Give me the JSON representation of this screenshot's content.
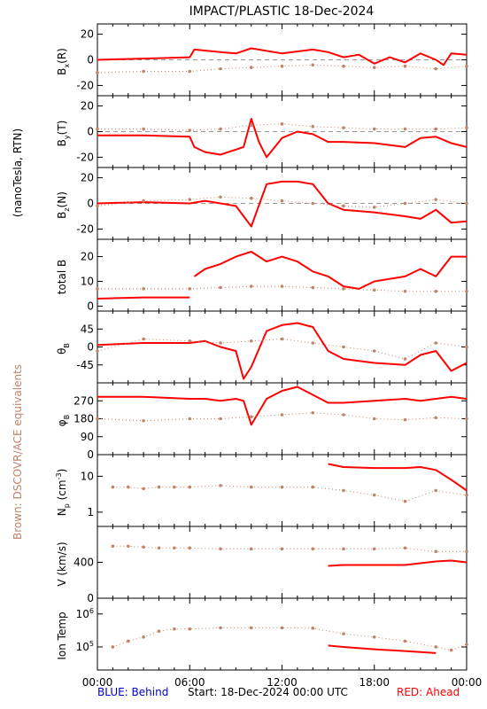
{
  "title": "IMPACT/PLASTIC   18-Dec-2024",
  "side_label_units": "(nanoTesla, RTN)",
  "side_label_brown": "Brown: DSCOVR/ACE equivalents",
  "footer": {
    "blue": "BLUE: Behind",
    "start": "Start: 18-Dec-2024 00:00 UTC",
    "red": "RED: Ahead"
  },
  "colors": {
    "red": "#ff0000",
    "brown": "#c0846a",
    "blue": "#0000cc",
    "axis": "#000000"
  },
  "x_ticks": [
    "00:00",
    "06:00",
    "12:00",
    "18:00",
    "00:00"
  ],
  "chart_data": [
    {
      "type": "line",
      "ylabel": "B_x(R)",
      "ylim": [
        -28,
        28
      ],
      "yticks": [
        {
          "v": 20,
          "l": "20"
        },
        {
          "v": 0,
          "l": "0"
        },
        {
          "v": -20,
          "l": "-20"
        }
      ],
      "zero_line": true,
      "series": [
        {
          "color": "red",
          "style": "line",
          "x": [
            0,
            3,
            6,
            6.3,
            8,
            9,
            10,
            12,
            14,
            15,
            16,
            17,
            18,
            19,
            20,
            21,
            22,
            22.5,
            23,
            24
          ],
          "y": [
            0,
            1,
            2,
            8,
            6,
            5,
            9,
            5,
            8,
            6,
            2,
            4,
            -3,
            2,
            -2,
            5,
            0,
            -4,
            5,
            4
          ]
        },
        {
          "color": "brown",
          "style": "dots",
          "x": [
            0,
            3,
            6,
            8,
            10,
            12,
            14,
            16,
            18,
            20,
            22,
            24
          ],
          "y": [
            -10,
            -9,
            -9,
            -7,
            -6,
            -5,
            -4,
            -5,
            -6,
            -5,
            -7,
            -5
          ]
        }
      ]
    },
    {
      "type": "line",
      "ylabel": "B_y(T)",
      "ylim": [
        -28,
        28
      ],
      "yticks": [
        {
          "v": 20,
          "l": "20"
        },
        {
          "v": 0,
          "l": "0"
        },
        {
          "v": -20,
          "l": "-20"
        }
      ],
      "zero_line": true,
      "series": [
        {
          "color": "red",
          "style": "line",
          "x": [
            0,
            3,
            6,
            6.3,
            7,
            8,
            9.5,
            10,
            10.5,
            11,
            12,
            13,
            14,
            15,
            16,
            18,
            20,
            21,
            22,
            23,
            24
          ],
          "y": [
            -3,
            -3,
            -4,
            -12,
            -16,
            -18,
            -12,
            10,
            -8,
            -20,
            -5,
            0,
            -2,
            -8,
            -8,
            -9,
            -12,
            -5,
            -4,
            -9,
            -12
          ]
        },
        {
          "color": "brown",
          "style": "dots",
          "x": [
            0,
            3,
            6,
            8,
            10,
            12,
            14,
            16,
            18,
            20,
            22,
            24
          ],
          "y": [
            2,
            2,
            1,
            2,
            5,
            6,
            4,
            3,
            2,
            2,
            2,
            3
          ]
        }
      ]
    },
    {
      "type": "line",
      "ylabel": "B_z(N)",
      "ylim": [
        -28,
        28
      ],
      "yticks": [
        {
          "v": 20,
          "l": "20"
        },
        {
          "v": 0,
          "l": "0"
        },
        {
          "v": -20,
          "l": "-20"
        }
      ],
      "zero_line": true,
      "series": [
        {
          "color": "red",
          "style": "line",
          "x": [
            0,
            3,
            6,
            7,
            8,
            9,
            10,
            11,
            12,
            13,
            14,
            15,
            16,
            18,
            20,
            21,
            22,
            23,
            24
          ],
          "y": [
            0,
            1,
            0,
            2,
            0,
            -2,
            -18,
            15,
            17,
            17,
            15,
            0,
            -5,
            -7,
            -10,
            -12,
            -5,
            -15,
            -14
          ]
        },
        {
          "color": "brown",
          "style": "dots",
          "x": [
            0,
            3,
            6,
            8,
            10,
            12,
            14,
            16,
            18,
            20,
            22,
            24
          ],
          "y": [
            -2,
            2,
            3,
            5,
            4,
            2,
            0,
            -2,
            -3,
            0,
            3,
            0
          ]
        }
      ]
    },
    {
      "type": "line",
      "ylabel": "total B",
      "ylim": [
        -2,
        27
      ],
      "yticks": [
        {
          "v": 20,
          "l": "20"
        },
        {
          "v": 10,
          "l": "10"
        },
        {
          "v": 0,
          "l": "0"
        }
      ],
      "zero_line": false,
      "series": [
        {
          "color": "red",
          "style": "line",
          "x": [
            0,
            3,
            6
          ],
          "y": [
            3,
            3.5,
            3.5
          ]
        },
        {
          "color": "red",
          "style": "line",
          "x": [
            6.3,
            7,
            8,
            9,
            10,
            11,
            12,
            13,
            14,
            15,
            16,
            17,
            18,
            20,
            21,
            22,
            23,
            24
          ],
          "y": [
            12,
            15,
            17,
            20,
            22,
            18,
            20,
            18,
            14,
            12,
            8,
            7,
            10,
            12,
            15,
            12,
            20,
            20
          ]
        },
        {
          "color": "brown",
          "style": "dots",
          "x": [
            0,
            3,
            6,
            8,
            10,
            12,
            14,
            16,
            18,
            20,
            22,
            24
          ],
          "y": [
            7,
            7,
            7,
            7.5,
            8,
            8,
            7.5,
            7,
            6.5,
            6,
            6,
            6
          ]
        }
      ]
    },
    {
      "type": "line",
      "ylabel": "θ_B",
      "ylim": [
        -90,
        90
      ],
      "yticks": [
        {
          "v": 45,
          "l": "45"
        },
        {
          "v": 0,
          "l": "0"
        },
        {
          "v": -45,
          "l": "-45"
        }
      ],
      "zero_line": false,
      "series": [
        {
          "color": "red",
          "style": "line",
          "x": [
            0,
            3,
            6,
            7,
            8,
            9,
            9.5,
            10,
            11,
            12,
            13,
            14,
            15,
            16,
            18,
            20,
            21,
            22,
            23,
            24
          ],
          "y": [
            5,
            10,
            10,
            15,
            0,
            -10,
            -80,
            -50,
            40,
            55,
            60,
            50,
            -10,
            -30,
            -40,
            -45,
            -20,
            -10,
            -60,
            -40
          ]
        },
        {
          "color": "brown",
          "style": "dots",
          "x": [
            0,
            3,
            6,
            8,
            10,
            12,
            14,
            16,
            18,
            20,
            22,
            24
          ],
          "y": [
            -10,
            20,
            15,
            10,
            15,
            20,
            10,
            0,
            -10,
            -30,
            10,
            0
          ]
        }
      ]
    },
    {
      "type": "line",
      "ylabel": "φ_B",
      "ylim": [
        0,
        360
      ],
      "yticks": [
        {
          "v": 270,
          "l": "270"
        },
        {
          "v": 180,
          "l": "180"
        },
        {
          "v": 90,
          "l": "90"
        },
        {
          "v": 0,
          "l": "0"
        }
      ],
      "zero_line": false,
      "series": [
        {
          "color": "red",
          "style": "line",
          "x": [
            0,
            3,
            6,
            7,
            8,
            9,
            9.5,
            10,
            11,
            12,
            13,
            14,
            15,
            16,
            18,
            20,
            21,
            22,
            23,
            24
          ],
          "y": [
            290,
            290,
            280,
            280,
            270,
            280,
            270,
            150,
            280,
            320,
            340,
            300,
            260,
            260,
            270,
            280,
            270,
            280,
            290,
            280
          ]
        },
        {
          "color": "brown",
          "style": "dots",
          "x": [
            0,
            3,
            6,
            8,
            10,
            12,
            14,
            16,
            18,
            20,
            22,
            24
          ],
          "y": [
            180,
            170,
            180,
            180,
            190,
            200,
            210,
            200,
            180,
            175,
            185,
            180
          ]
        }
      ]
    },
    {
      "type": "scatter",
      "ylabel": "N_p (cm^-3)",
      "log": true,
      "ylim": [
        0.4,
        40
      ],
      "yticks": [
        {
          "v": 10,
          "l": "10"
        },
        {
          "v": 1,
          "l": "1"
        }
      ],
      "zero_line": false,
      "series": [
        {
          "color": "red",
          "style": "line",
          "x": [
            15,
            16,
            18,
            20,
            21,
            22,
            23,
            24
          ],
          "y": [
            22,
            18,
            17,
            17,
            18,
            15,
            8,
            4
          ]
        },
        {
          "color": "brown",
          "style": "dots",
          "x": [
            1,
            2,
            3,
            4,
            5,
            6,
            8,
            10,
            12,
            14,
            16,
            18,
            20,
            22,
            24
          ],
          "y": [
            5,
            5,
            4.5,
            5,
            5,
            5,
            5.5,
            5,
            5,
            5,
            4,
            3,
            2,
            4,
            3
          ]
        }
      ]
    },
    {
      "type": "scatter",
      "ylabel": "V (km/s)",
      "ylim": [
        0,
        800
      ],
      "yticks": [
        {
          "v": 400,
          "l": "400"
        },
        {
          "v": 0,
          "l": "0"
        }
      ],
      "zero_line": false,
      "series": [
        {
          "color": "red",
          "style": "line",
          "x": [
            15,
            16,
            18,
            20,
            21,
            22,
            23,
            24
          ],
          "y": [
            360,
            370,
            370,
            370,
            390,
            410,
            420,
            400
          ]
        },
        {
          "color": "brown",
          "style": "dots",
          "x": [
            1,
            2,
            3,
            4,
            5,
            6,
            8,
            10,
            12,
            14,
            16,
            18,
            20,
            22,
            24
          ],
          "y": [
            580,
            580,
            570,
            560,
            560,
            560,
            550,
            550,
            550,
            550,
            550,
            550,
            560,
            520,
            520
          ]
        }
      ]
    },
    {
      "type": "scatter",
      "ylabel": "Ion Temp",
      "log": true,
      "ylim": [
        20000,
        3000000
      ],
      "yticks": [
        {
          "v": 1000000,
          "l": "10^6"
        },
        {
          "v": 100000,
          "l": "10^5"
        }
      ],
      "zero_line": false,
      "series": [
        {
          "color": "red",
          "style": "line",
          "x": [
            15,
            16,
            18,
            20,
            21,
            22
          ],
          "y": [
            110000,
            100000,
            85000,
            75000,
            70000,
            65000
          ]
        },
        {
          "color": "brown",
          "style": "dots",
          "x": [
            1,
            2,
            3,
            4,
            5,
            6,
            8,
            10,
            12,
            14,
            16,
            18,
            20,
            22,
            23,
            24
          ],
          "y": [
            100000,
            150000,
            200000,
            300000,
            350000,
            350000,
            380000,
            380000,
            380000,
            370000,
            250000,
            200000,
            150000,
            100000,
            80000,
            120000
          ]
        }
      ]
    }
  ]
}
